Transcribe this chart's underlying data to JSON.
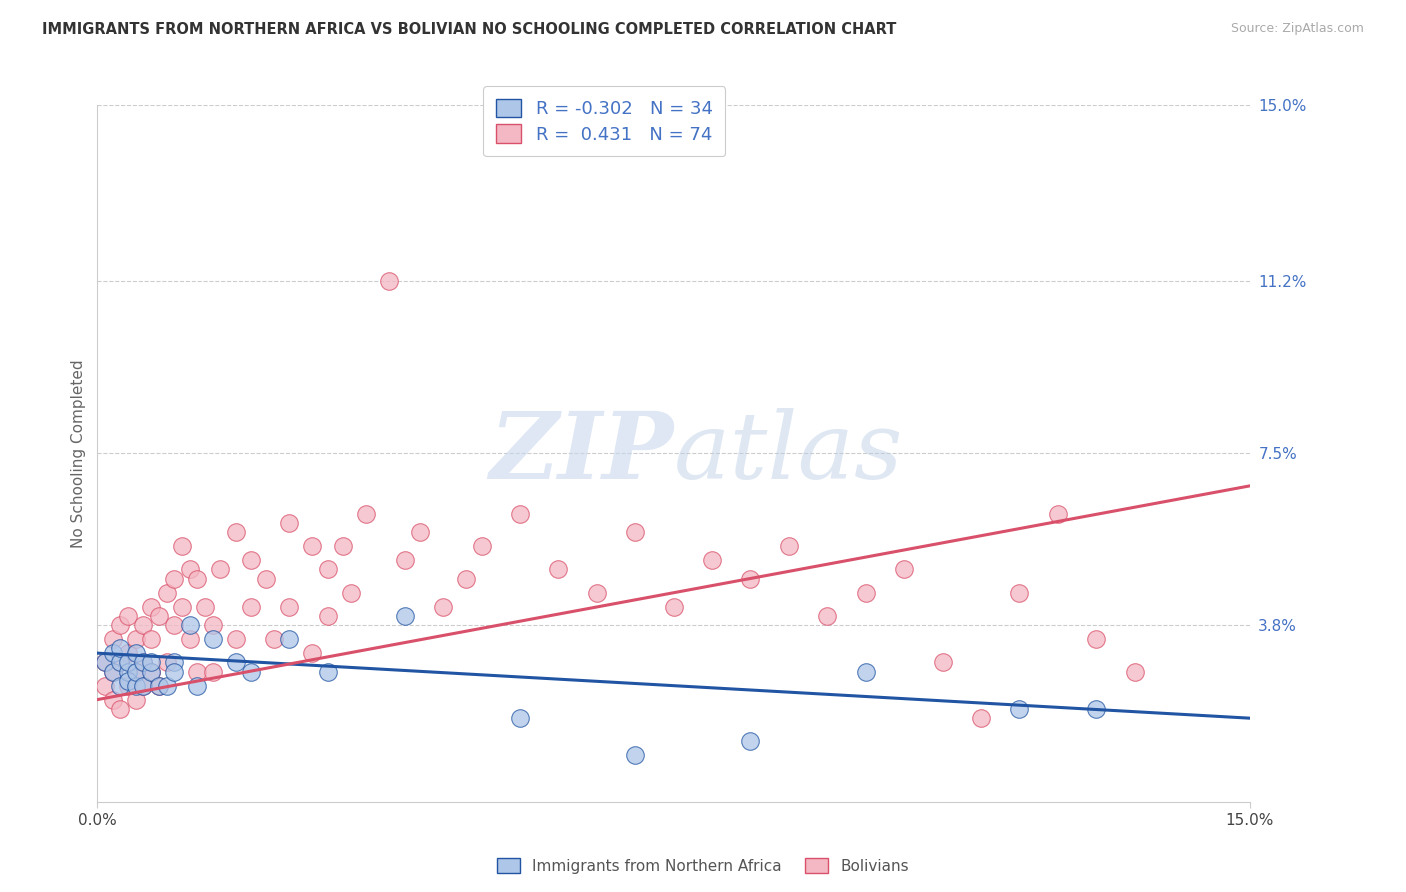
{
  "title": "IMMIGRANTS FROM NORTHERN AFRICA VS BOLIVIAN NO SCHOOLING COMPLETED CORRELATION CHART",
  "source": "Source: ZipAtlas.com",
  "ylabel": "No Schooling Completed",
  "xlim": [
    0.0,
    0.15
  ],
  "ylim": [
    0.0,
    0.15
  ],
  "ytick_right_labels": [
    "3.8%",
    "7.5%",
    "11.2%",
    "15.0%"
  ],
  "ytick_right_values": [
    0.038,
    0.075,
    0.112,
    0.15
  ],
  "blue_R": "-0.302",
  "blue_N": "34",
  "pink_R": "0.431",
  "pink_N": "74",
  "blue_color": "#aec6e8",
  "pink_color": "#f4b8c4",
  "blue_line_color": "#2155a3",
  "pink_line_color": "#d9506a",
  "legend_label_blue": "Immigrants from Northern Africa",
  "legend_label_pink": "Bolivians",
  "watermark_zip": "ZIP",
  "watermark_atlas": "atlas",
  "blue_scatter_x": [
    0.001,
    0.002,
    0.002,
    0.003,
    0.003,
    0.003,
    0.004,
    0.004,
    0.004,
    0.005,
    0.005,
    0.005,
    0.006,
    0.006,
    0.007,
    0.007,
    0.008,
    0.009,
    0.01,
    0.01,
    0.012,
    0.013,
    0.015,
    0.018,
    0.02,
    0.025,
    0.03,
    0.04,
    0.055,
    0.07,
    0.085,
    0.1,
    0.12,
    0.13
  ],
  "blue_scatter_y": [
    0.03,
    0.028,
    0.032,
    0.025,
    0.03,
    0.033,
    0.028,
    0.03,
    0.026,
    0.025,
    0.032,
    0.028,
    0.025,
    0.03,
    0.028,
    0.03,
    0.025,
    0.025,
    0.03,
    0.028,
    0.038,
    0.025,
    0.035,
    0.03,
    0.028,
    0.035,
    0.028,
    0.04,
    0.018,
    0.01,
    0.013,
    0.028,
    0.02,
    0.02
  ],
  "pink_scatter_x": [
    0.001,
    0.001,
    0.002,
    0.002,
    0.002,
    0.003,
    0.003,
    0.003,
    0.004,
    0.004,
    0.004,
    0.005,
    0.005,
    0.005,
    0.006,
    0.006,
    0.006,
    0.007,
    0.007,
    0.007,
    0.008,
    0.008,
    0.009,
    0.009,
    0.01,
    0.01,
    0.011,
    0.011,
    0.012,
    0.012,
    0.013,
    0.013,
    0.014,
    0.015,
    0.015,
    0.016,
    0.018,
    0.018,
    0.02,
    0.02,
    0.022,
    0.023,
    0.025,
    0.025,
    0.028,
    0.028,
    0.03,
    0.03,
    0.032,
    0.033,
    0.035,
    0.038,
    0.04,
    0.042,
    0.045,
    0.048,
    0.05,
    0.055,
    0.06,
    0.065,
    0.07,
    0.075,
    0.08,
    0.085,
    0.09,
    0.095,
    0.1,
    0.105,
    0.11,
    0.115,
    0.12,
    0.125,
    0.13,
    0.135
  ],
  "pink_scatter_y": [
    0.025,
    0.03,
    0.022,
    0.028,
    0.035,
    0.02,
    0.03,
    0.038,
    0.025,
    0.032,
    0.04,
    0.028,
    0.035,
    0.022,
    0.038,
    0.03,
    0.025,
    0.042,
    0.035,
    0.028,
    0.025,
    0.04,
    0.045,
    0.03,
    0.048,
    0.038,
    0.055,
    0.042,
    0.035,
    0.05,
    0.028,
    0.048,
    0.042,
    0.038,
    0.028,
    0.05,
    0.058,
    0.035,
    0.052,
    0.042,
    0.048,
    0.035,
    0.06,
    0.042,
    0.055,
    0.032,
    0.05,
    0.04,
    0.055,
    0.045,
    0.062,
    0.112,
    0.052,
    0.058,
    0.042,
    0.048,
    0.055,
    0.062,
    0.05,
    0.045,
    0.058,
    0.042,
    0.052,
    0.048,
    0.055,
    0.04,
    0.045,
    0.05,
    0.03,
    0.018,
    0.045,
    0.062,
    0.035,
    0.028
  ],
  "blue_trend_x": [
    0.0,
    0.15
  ],
  "blue_trend_y": [
    0.032,
    0.018
  ],
  "pink_trend_x": [
    0.0,
    0.15
  ],
  "pink_trend_y": [
    0.022,
    0.068
  ]
}
